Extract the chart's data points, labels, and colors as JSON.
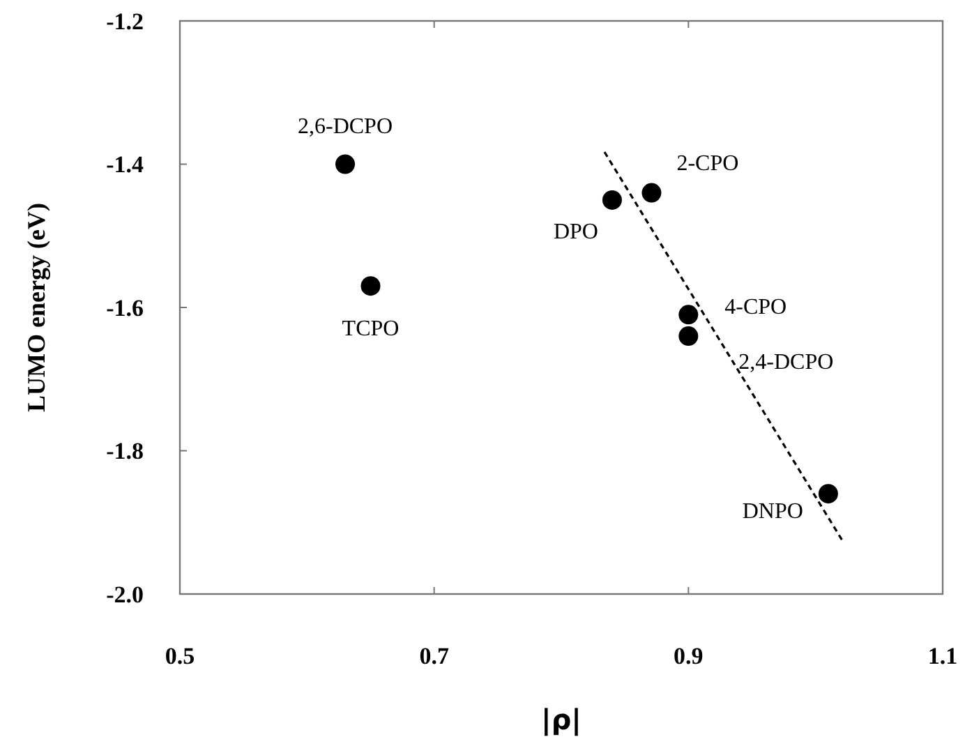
{
  "chart_data": {
    "type": "scatter",
    "xlabel": "|ρ|",
    "ylabel": "LUMO energy (eV)",
    "xlim": [
      0.5,
      1.1
    ],
    "xticks": [
      0.5,
      0.7,
      0.9,
      1.1
    ],
    "ylim": [
      -2.0,
      -1.2
    ],
    "yticks": [
      {
        "value": -2.0,
        "label": "-2.0"
      },
      -1.8,
      -1.6,
      -1.4,
      -1.2
    ],
    "grid": false,
    "series": [
      {
        "color": "#000000",
        "marker": "circle",
        "x": [
          0.63,
          0.65,
          0.84,
          0.871,
          0.9,
          0.9,
          1.01
        ],
        "values": [
          -1.4,
          -1.57,
          -1.45,
          -1.44,
          -1.61,
          -1.64,
          -1.86
        ]
      },
      {
        "type": "line",
        "color": "#000000",
        "marker": "none",
        "line_style": "dashed",
        "x": [
          0.834,
          1.022
        ],
        "values": [
          -1.383,
          -1.928
        ]
      }
    ],
    "annotations": [
      {
        "text": "2,6-DCPO",
        "x": 0.63,
        "y": -1.4
      },
      {
        "text": "TCPO",
        "x": 0.65,
        "y": -1.57
      },
      {
        "text": "DPO",
        "x": 0.84,
        "y": -1.45
      },
      {
        "text": "2-CPO",
        "x": 0.871,
        "y": -1.44
      },
      {
        "text": "4-CPO",
        "x": 0.9,
        "y": -1.61
      },
      {
        "text": "2,4-DCPO",
        "x": 0.9,
        "y": -1.64
      },
      {
        "text": "DNPO",
        "x": 1.01,
        "y": -1.86
      }
    ]
  }
}
